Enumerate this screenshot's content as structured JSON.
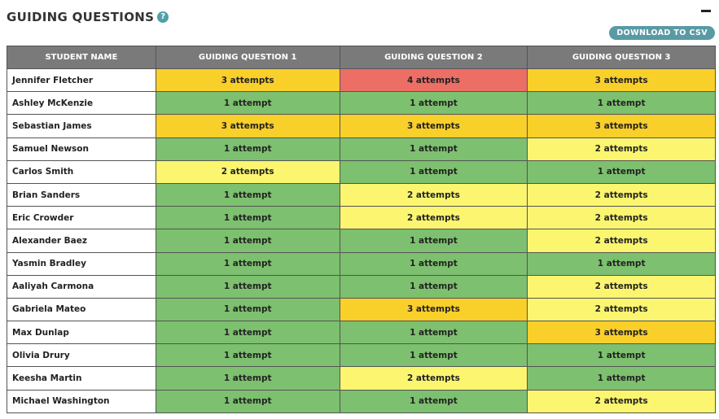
{
  "header": {
    "title": "GUIDING QUESTIONS",
    "help_icon": "?",
    "download_label": "DOWNLOAD TO CSV"
  },
  "colors": {
    "one_attempt": "#7dc06f",
    "two_attempts": "#fbf570",
    "three_attempts": "#f9cf2a",
    "four_attempts": "#ed6e65",
    "header_bg": "#7a7a7a",
    "button_bg": "#5a9aa5"
  },
  "table": {
    "columns": [
      "STUDENT NAME",
      "GUIDING QUESTION 1",
      "GUIDING QUESTION 2",
      "GUIDING QUESTION 3"
    ],
    "rows": [
      {
        "name": "Jennifer Fletcher",
        "cells": [
          {
            "text": "3 attempts",
            "level": 3
          },
          {
            "text": "4 attempts",
            "level": 4
          },
          {
            "text": "3 attempts",
            "level": 3
          }
        ]
      },
      {
        "name": "Ashley McKenzie",
        "cells": [
          {
            "text": "1 attempt",
            "level": 1
          },
          {
            "text": "1 attempt",
            "level": 1
          },
          {
            "text": "1 attempt",
            "level": 1
          }
        ]
      },
      {
        "name": "Sebastian James",
        "cells": [
          {
            "text": "3 attempts",
            "level": 3
          },
          {
            "text": "3 attempts",
            "level": 3
          },
          {
            "text": "3 attempts",
            "level": 3
          }
        ]
      },
      {
        "name": "Samuel Newson",
        "cells": [
          {
            "text": "1 attempt",
            "level": 1
          },
          {
            "text": "1 attempt",
            "level": 1
          },
          {
            "text": "2 attempts",
            "level": 2
          }
        ]
      },
      {
        "name": "Carlos Smith",
        "cells": [
          {
            "text": "2 attempts",
            "level": 2
          },
          {
            "text": "1 attempt",
            "level": 1
          },
          {
            "text": "1 attempt",
            "level": 1
          }
        ]
      },
      {
        "name": "Brian Sanders",
        "cells": [
          {
            "text": "1 attempt",
            "level": 1
          },
          {
            "text": "2 attempts",
            "level": 2
          },
          {
            "text": "2 attempts",
            "level": 2
          }
        ]
      },
      {
        "name": "Eric Crowder",
        "cells": [
          {
            "text": "1 attempt",
            "level": 1
          },
          {
            "text": "2 attempts",
            "level": 2
          },
          {
            "text": "2 attempts",
            "level": 2
          }
        ]
      },
      {
        "name": "Alexander Baez",
        "cells": [
          {
            "text": "1 attempt",
            "level": 1
          },
          {
            "text": "1 attempt",
            "level": 1
          },
          {
            "text": "2 attempts",
            "level": 2
          }
        ]
      },
      {
        "name": "Yasmin Bradley",
        "cells": [
          {
            "text": "1 attempt",
            "level": 1
          },
          {
            "text": "1 attempt",
            "level": 1
          },
          {
            "text": "1 attempt",
            "level": 1
          }
        ]
      },
      {
        "name": "Aaliyah Carmona",
        "cells": [
          {
            "text": "1 attempt",
            "level": 1
          },
          {
            "text": "1 attempt",
            "level": 1
          },
          {
            "text": "2 attempts",
            "level": 2
          }
        ]
      },
      {
        "name": "Gabriela Mateo",
        "cells": [
          {
            "text": "1 attempt",
            "level": 1
          },
          {
            "text": "3 attempts",
            "level": 3
          },
          {
            "text": "2 attempts",
            "level": 2
          }
        ]
      },
      {
        "name": "Max Dunlap",
        "cells": [
          {
            "text": "1 attempt",
            "level": 1
          },
          {
            "text": "1 attempt",
            "level": 1
          },
          {
            "text": "3 attempts",
            "level": 3
          }
        ]
      },
      {
        "name": "Olivia Drury",
        "cells": [
          {
            "text": "1 attempt",
            "level": 1
          },
          {
            "text": "1 attempt",
            "level": 1
          },
          {
            "text": "1 attempt",
            "level": 1
          }
        ]
      },
      {
        "name": "Keesha Martin",
        "cells": [
          {
            "text": "1 attempt",
            "level": 1
          },
          {
            "text": "2 attempts",
            "level": 2
          },
          {
            "text": "1 attempt",
            "level": 1
          }
        ]
      },
      {
        "name": "Michael Washington",
        "cells": [
          {
            "text": "1 attempt",
            "level": 1
          },
          {
            "text": "1 attempt",
            "level": 1
          },
          {
            "text": "2 attempts",
            "level": 2
          }
        ]
      }
    ]
  }
}
